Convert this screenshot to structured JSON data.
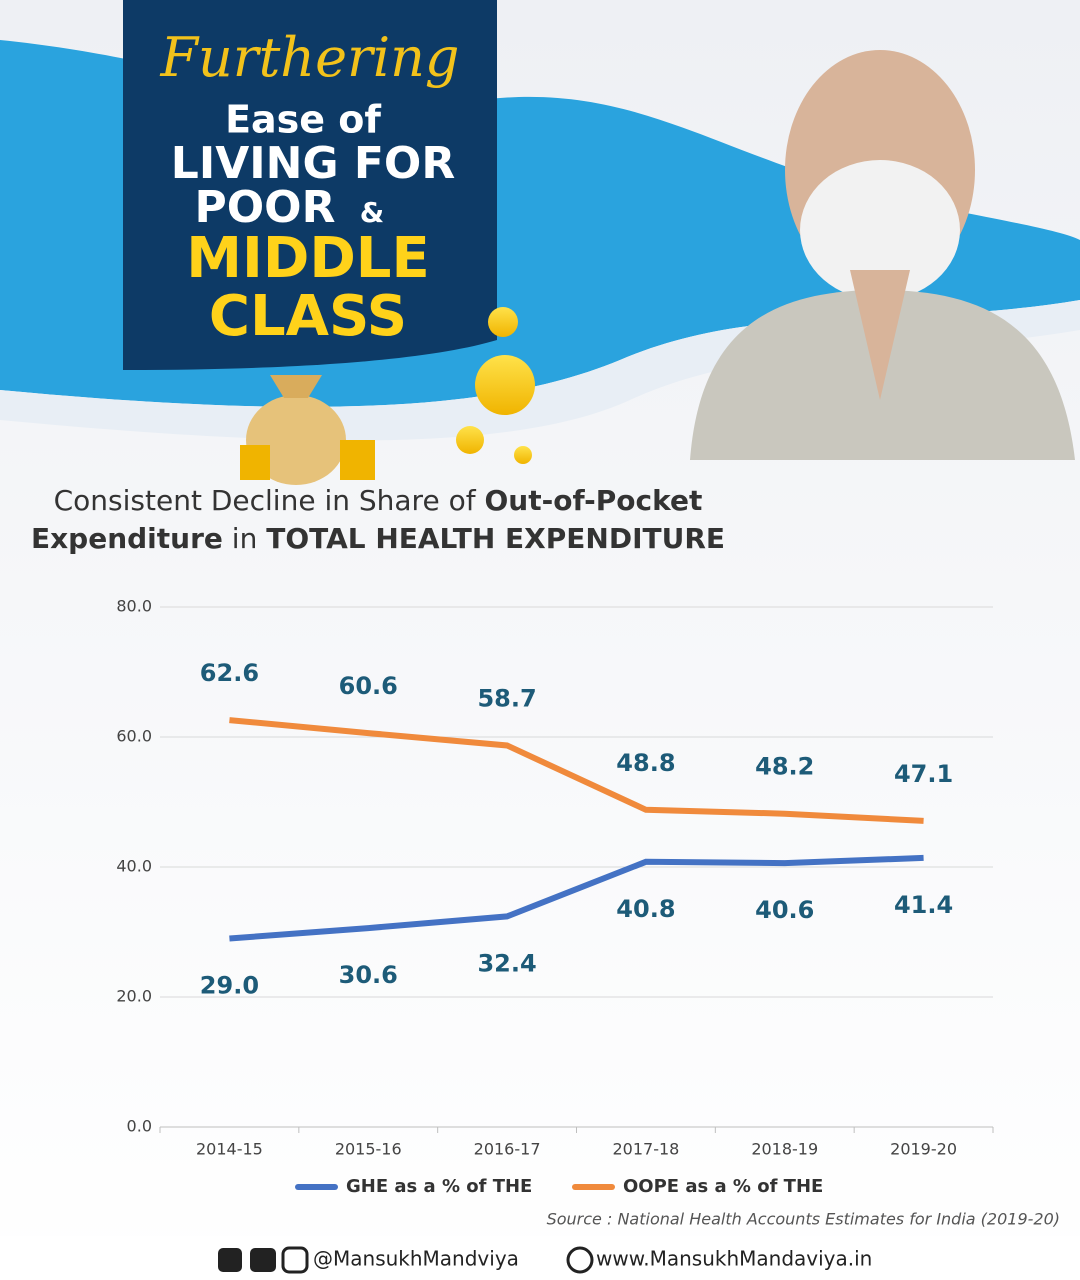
{
  "poster": {
    "lines": [
      "Furthering",
      "Ease of",
      "LIVING FOR",
      "POOR",
      "&",
      "MIDDLE",
      "CLASS"
    ]
  },
  "chart_data": {
    "type": "line",
    "title": [
      "Consistent Decline in Share of",
      "Out-of-Pocket",
      "Expenditure",
      "in",
      "TOTAL HEALTH EXPENDITURE"
    ],
    "categories": [
      "2014-15",
      "2015-16",
      "2016-17",
      "2017-18",
      "2018-19",
      "2019-20"
    ],
    "series": [
      {
        "name": "GHE as a % of THE",
        "color": "#4472c4",
        "values": [
          29.0,
          30.6,
          32.4,
          40.8,
          40.6,
          41.4
        ],
        "value_labels": [
          "29.0",
          "30.6",
          "32.4",
          "40.8",
          "40.6",
          "41.4"
        ]
      },
      {
        "name": "OOPE as a % of THE",
        "color": "#f08a3c",
        "values": [
          62.6,
          60.6,
          58.7,
          48.8,
          48.2,
          47.1
        ],
        "value_labels": [
          "62.6",
          "60.6",
          "58.7",
          "48.8",
          "48.2",
          "47.1"
        ]
      }
    ],
    "ylim": [
      0,
      80
    ],
    "yticks": [
      {
        "value": 0,
        "label": "0.0"
      },
      {
        "value": 20,
        "label": "20.0"
      },
      {
        "value": 40,
        "label": "40.0"
      },
      {
        "value": 60,
        "label": "60.0"
      },
      {
        "value": 80,
        "label": "80.0"
      }
    ],
    "grid": true,
    "label_color": "#1d5b78",
    "source": "Source : National Health Accounts Estimates for India (2019-20)"
  },
  "footer": {
    "social": "@MansukhMandviya",
    "website": "www.MansukhMandaviya.in"
  }
}
